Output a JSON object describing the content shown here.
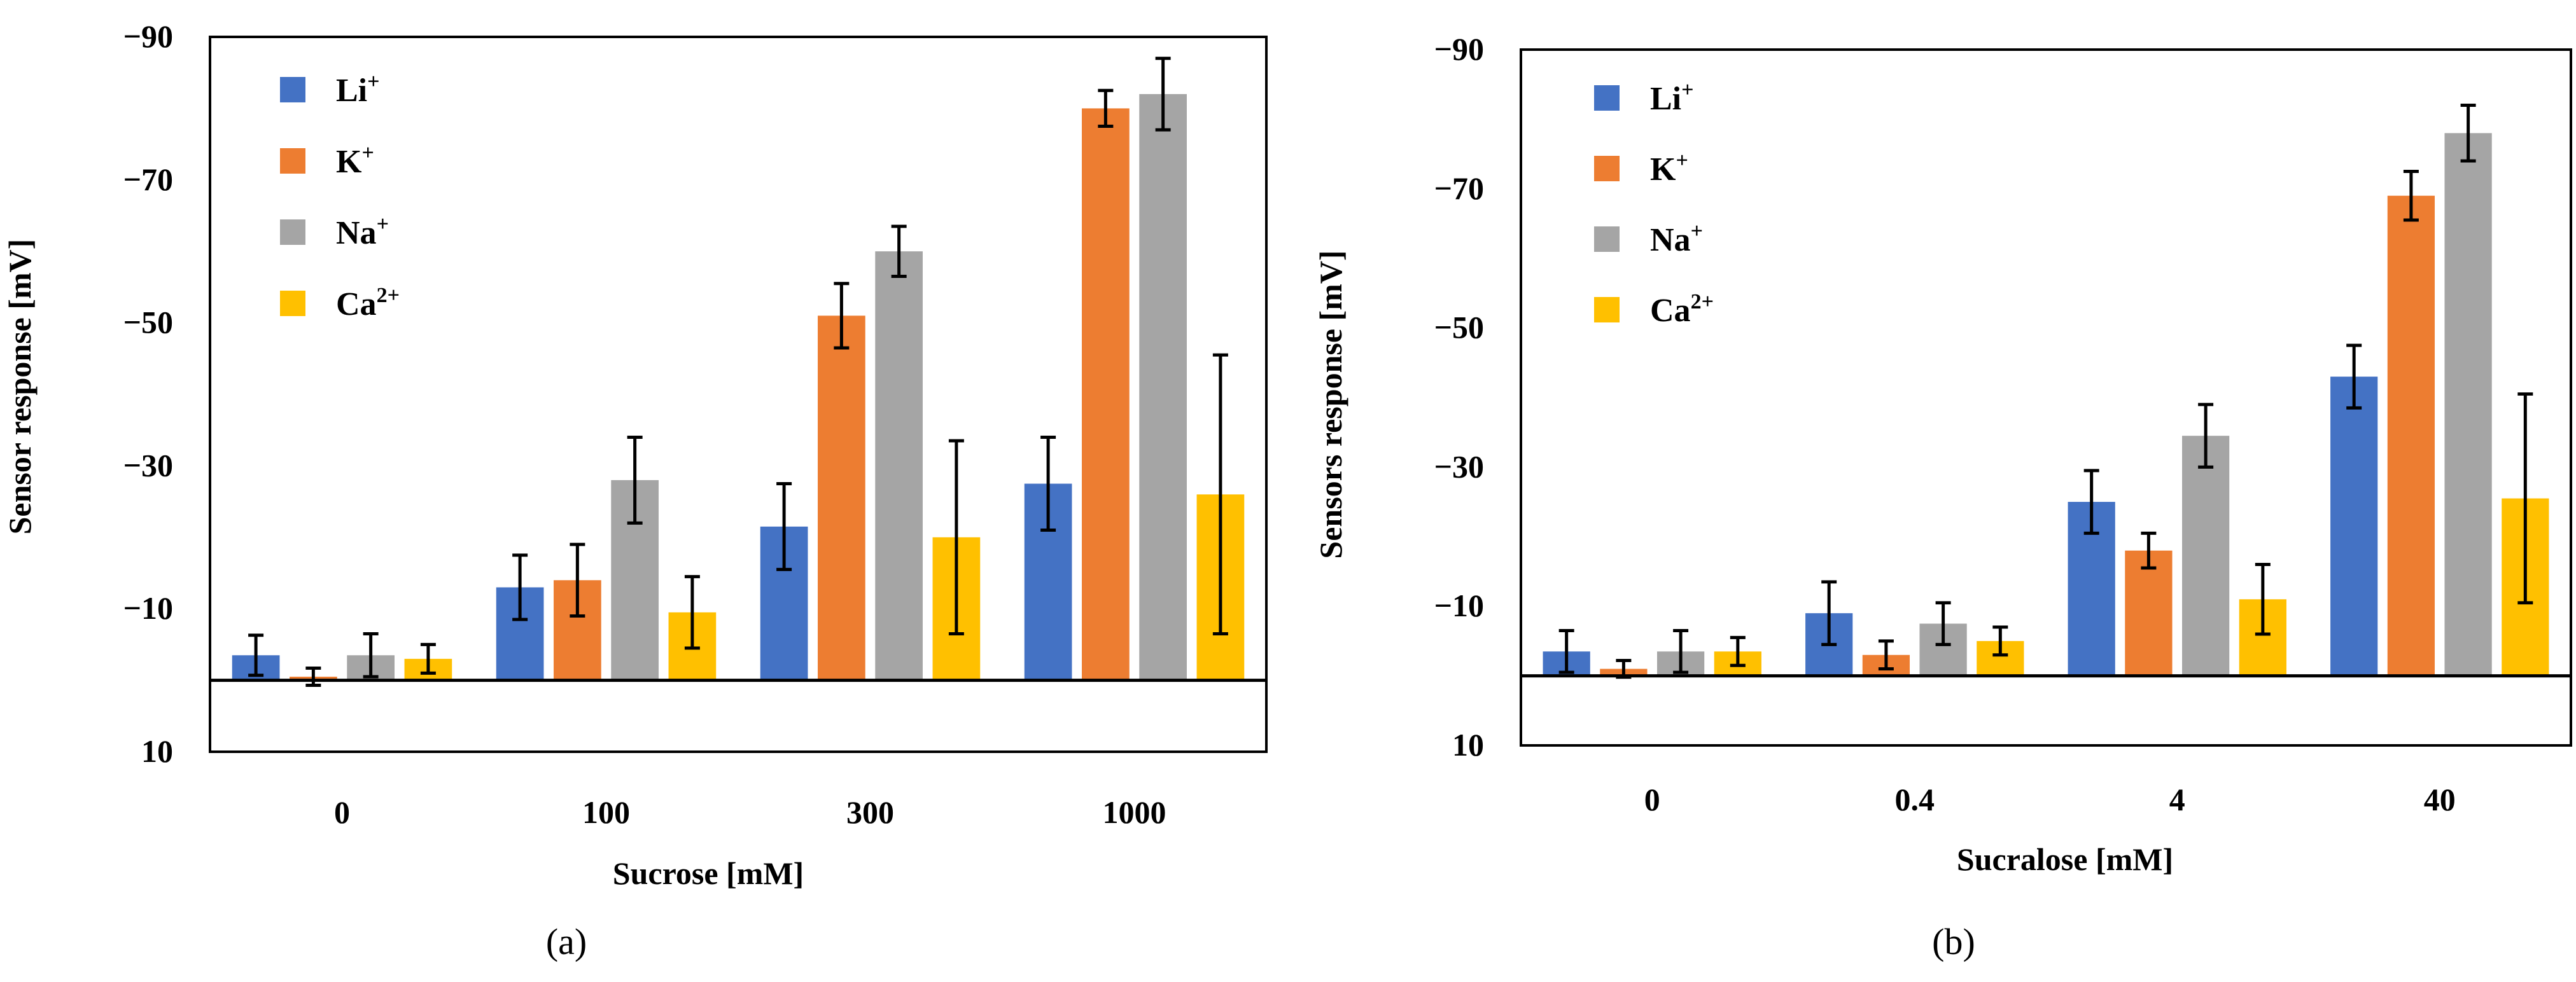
{
  "chart_data": [
    {
      "type": "bar",
      "panel_label": "(a)",
      "xlabel": "Sucrose [mM]",
      "ylabel": "Sensor response [mV]",
      "categories": [
        "0",
        "100",
        "300",
        "1000"
      ],
      "ylim": [
        10,
        -90
      ],
      "yticks": [
        "10",
        "−10",
        "−30",
        "−50",
        "−70",
        "−90"
      ],
      "ytick_values": [
        10,
        -10,
        -30,
        -50,
        -70,
        -90
      ],
      "legend_position": "top-left",
      "series": [
        {
          "name": "Li",
          "sup": "+",
          "color": "#4472C4",
          "values": [
            -3.5,
            -13,
            -21.5,
            -27.5
          ],
          "errors": [
            2.8,
            4.5,
            6,
            6.5
          ]
        },
        {
          "name": "K",
          "sup": "+",
          "color": "#ED7D31",
          "values": [
            -0.5,
            -14,
            -51,
            -80
          ],
          "errors": [
            1.2,
            5,
            4.5,
            2.5
          ]
        },
        {
          "name": "Na",
          "sup": "+",
          "color": "#A5A5A5",
          "values": [
            -3.5,
            -28,
            -60,
            -82
          ],
          "errors": [
            3,
            6,
            3.5,
            5
          ]
        },
        {
          "name": "Ca",
          "sup": "2+",
          "color": "#FFC000",
          "values": [
            -3,
            -9.5,
            -20,
            -26
          ],
          "errors": [
            2,
            5,
            13.5,
            19.5
          ]
        }
      ]
    },
    {
      "type": "bar",
      "panel_label": "(b)",
      "xlabel": "Sucralose [mM]",
      "ylabel": "Sensors response [mV]",
      "categories": [
        "0",
        "0.4",
        "4",
        "40"
      ],
      "ylim": [
        10,
        -90
      ],
      "yticks": [
        "10",
        "−10",
        "−30",
        "−50",
        "−70",
        "−90"
      ],
      "ytick_values": [
        10,
        -10,
        -30,
        -50,
        -70,
        -90
      ],
      "legend_position": "top-left",
      "series": [
        {
          "name": "Li",
          "sup": "+",
          "color": "#4472C4",
          "values": [
            -3.5,
            -9,
            -25,
            -43
          ],
          "errors": [
            3,
            4.5,
            4.5,
            4.5
          ]
        },
        {
          "name": "K",
          "sup": "+",
          "color": "#ED7D31",
          "values": [
            -1,
            -3,
            -18,
            -69
          ],
          "errors": [
            1.2,
            2,
            2.5,
            3.5
          ]
        },
        {
          "name": "Na",
          "sup": "+",
          "color": "#A5A5A5",
          "values": [
            -3.5,
            -7.5,
            -34.5,
            -78
          ],
          "errors": [
            3,
            3,
            4.5,
            4
          ]
        },
        {
          "name": "Ca",
          "sup": "2+",
          "color": "#FFC000",
          "values": [
            -3.5,
            -5,
            -11,
            -25.5
          ],
          "errors": [
            2,
            2,
            5,
            15
          ]
        }
      ]
    }
  ]
}
